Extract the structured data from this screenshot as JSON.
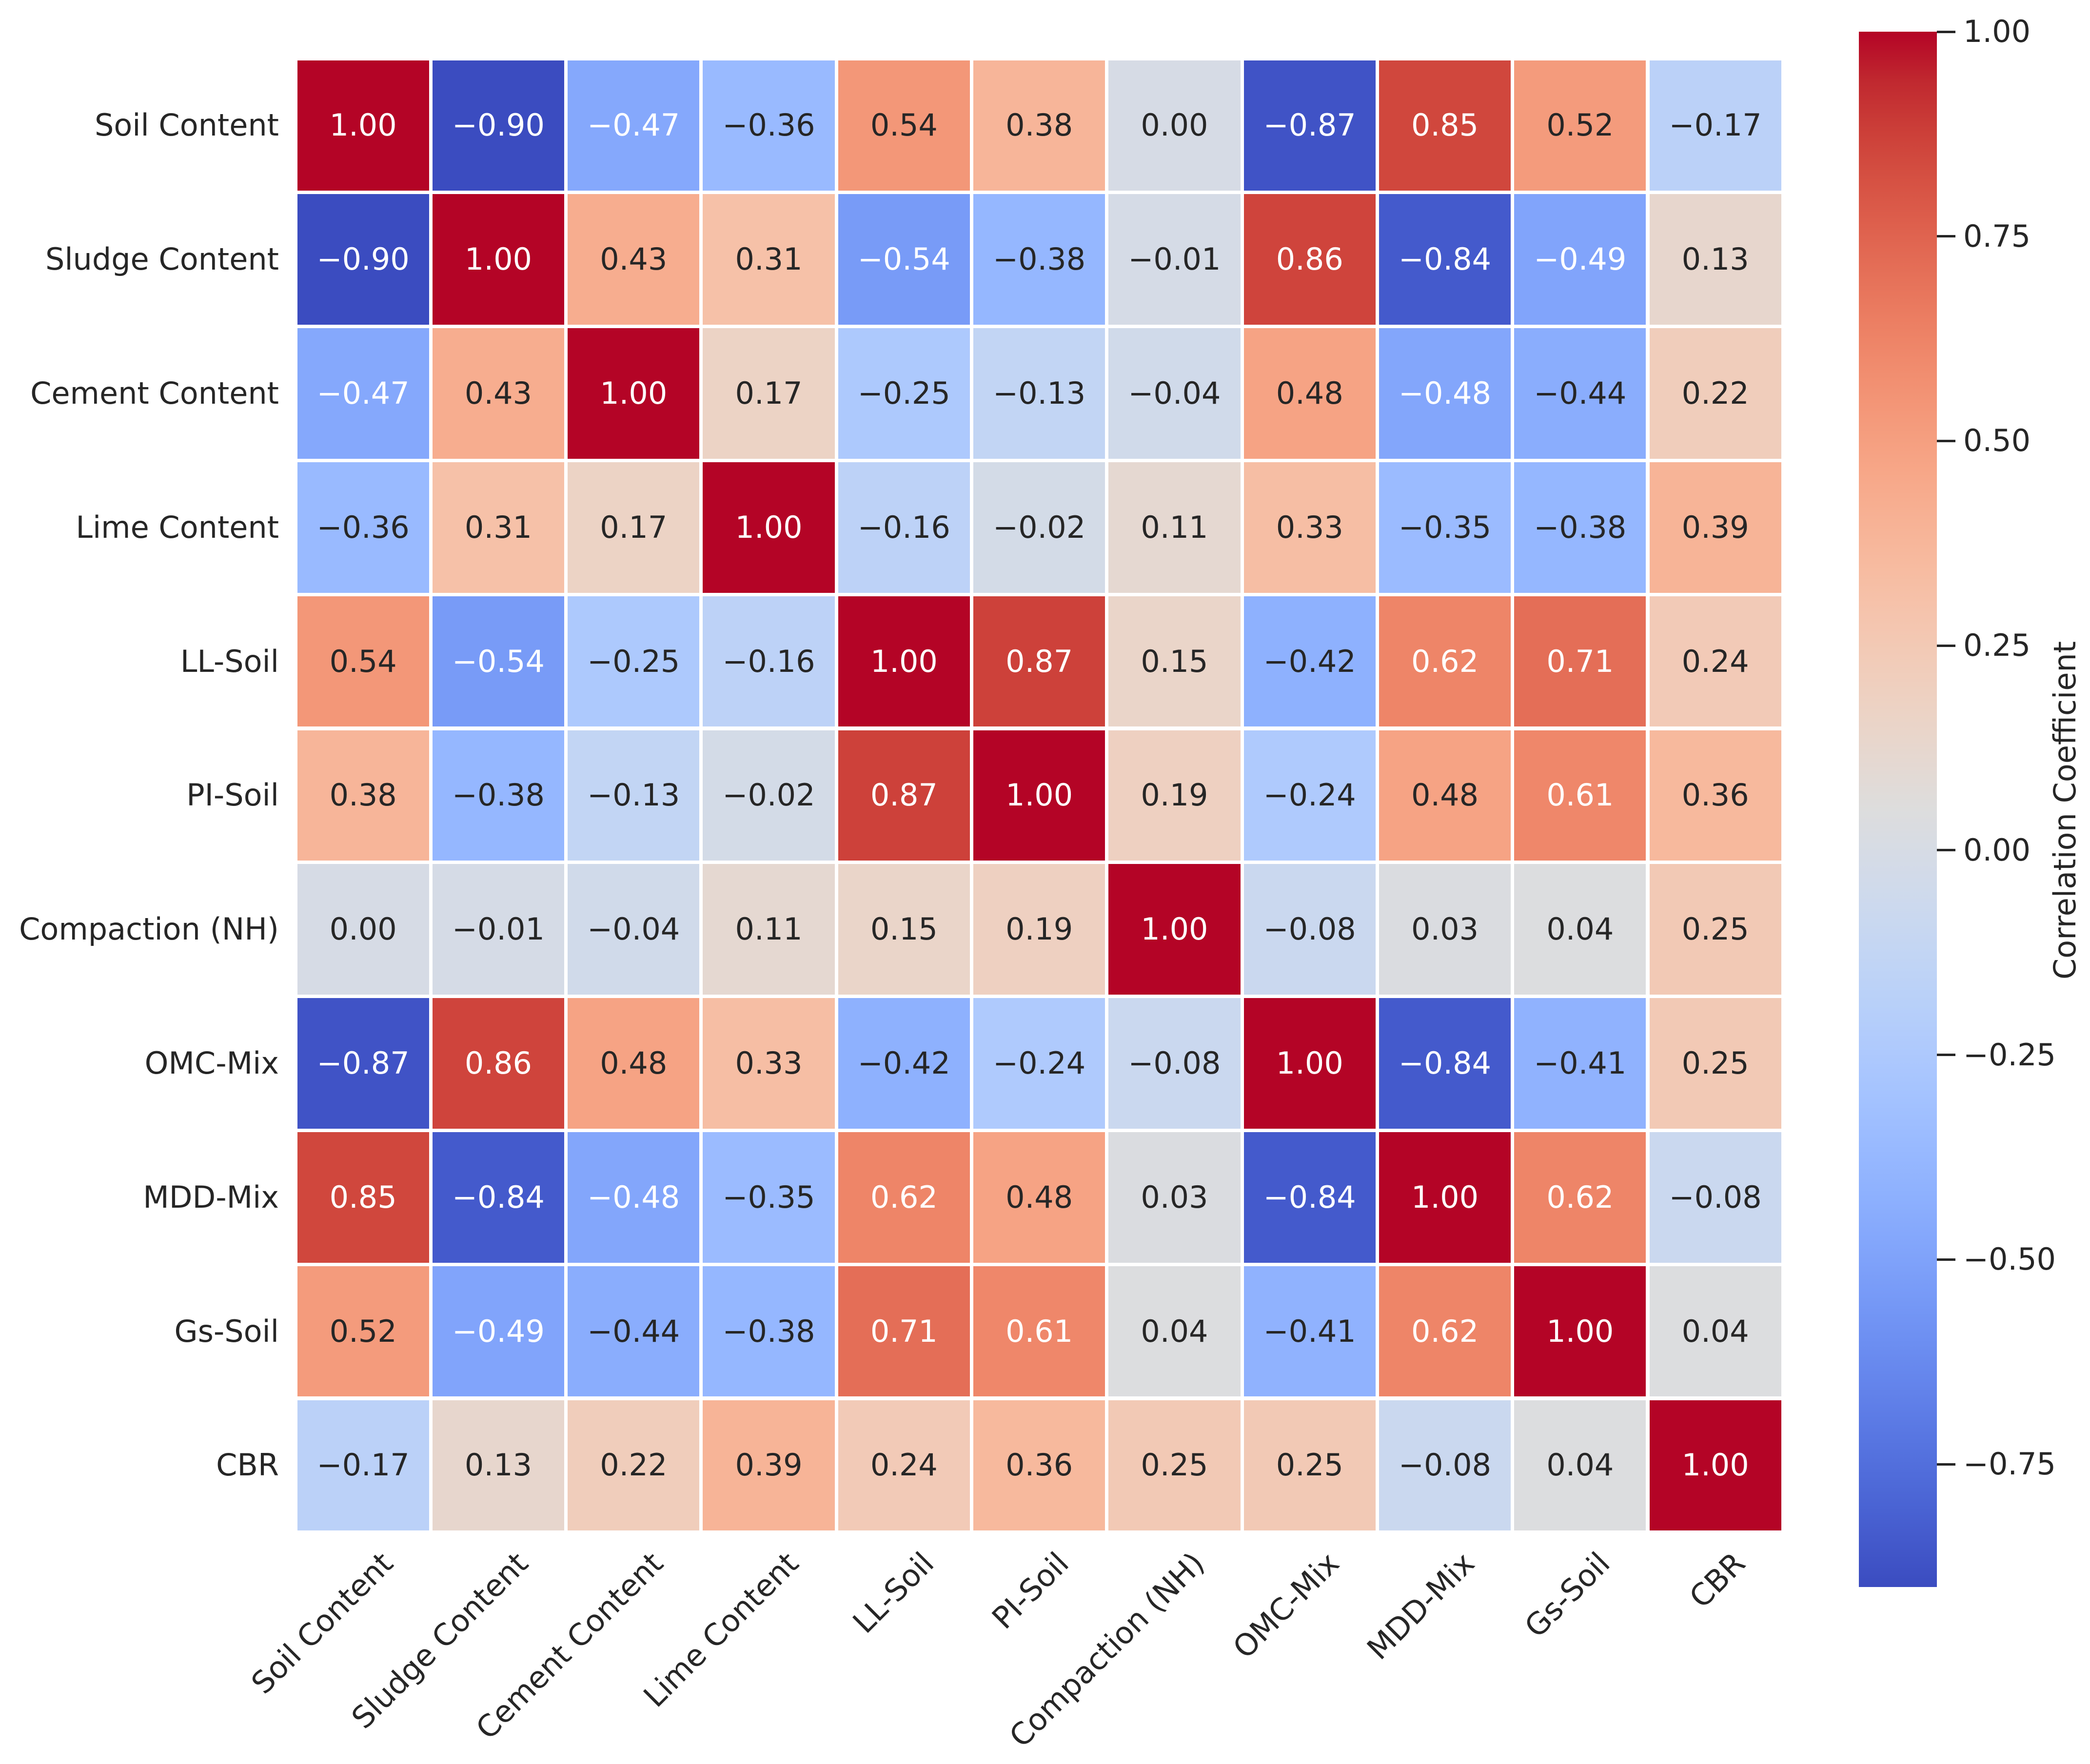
{
  "chart_data": {
    "type": "heatmap",
    "title": "",
    "categories": [
      "Soil Content",
      "Sludge Content",
      "Cement Content",
      "Lime Content",
      "LL-Soil",
      "PI-Soil",
      "Compaction (NH)",
      "OMC-Mix",
      "MDD-Mix",
      "Gs-Soil",
      "CBR"
    ],
    "matrix": [
      [
        1.0,
        -0.9,
        -0.47,
        -0.36,
        0.54,
        0.38,
        0.0,
        -0.87,
        0.85,
        0.52,
        -0.17
      ],
      [
        -0.9,
        1.0,
        0.43,
        0.31,
        -0.54,
        -0.38,
        -0.01,
        0.86,
        -0.84,
        -0.49,
        0.13
      ],
      [
        -0.47,
        0.43,
        1.0,
        0.17,
        -0.25,
        -0.13,
        -0.04,
        0.48,
        -0.48,
        -0.44,
        0.22
      ],
      [
        -0.36,
        0.31,
        0.17,
        1.0,
        -0.16,
        -0.02,
        0.11,
        0.33,
        -0.35,
        -0.38,
        0.39
      ],
      [
        0.54,
        -0.54,
        -0.25,
        -0.16,
        1.0,
        0.87,
        0.15,
        -0.42,
        0.62,
        0.71,
        0.24
      ],
      [
        0.38,
        -0.38,
        -0.13,
        -0.02,
        0.87,
        1.0,
        0.19,
        -0.24,
        0.48,
        0.61,
        0.36
      ],
      [
        0.0,
        -0.01,
        -0.04,
        0.11,
        0.15,
        0.19,
        1.0,
        -0.08,
        0.03,
        0.04,
        0.25
      ],
      [
        -0.87,
        0.86,
        0.48,
        0.33,
        -0.42,
        -0.24,
        -0.08,
        1.0,
        -0.84,
        -0.41,
        0.25
      ],
      [
        0.85,
        -0.84,
        -0.48,
        -0.35,
        0.62,
        0.48,
        0.03,
        -0.84,
        1.0,
        0.62,
        -0.08
      ],
      [
        0.52,
        -0.49,
        -0.44,
        -0.38,
        0.71,
        0.61,
        0.04,
        -0.41,
        0.62,
        1.0,
        0.04
      ],
      [
        -0.17,
        0.13,
        0.22,
        0.39,
        0.24,
        0.36,
        0.25,
        0.25,
        -0.08,
        0.04,
        1.0
      ]
    ],
    "colorbar": {
      "label": "Correlation Coefficient",
      "ticks": [
        1.0,
        0.75,
        0.5,
        0.25,
        0.0,
        -0.25,
        -0.5,
        -0.75
      ],
      "vmin": -0.9,
      "vmax": 1.0,
      "colormap": "coolwarm"
    },
    "layout": {
      "x_tick_rotation_deg": 45,
      "annotation_decimals": 2,
      "colorbar_position": "right",
      "grid_lines": "white cell separators"
    }
  }
}
